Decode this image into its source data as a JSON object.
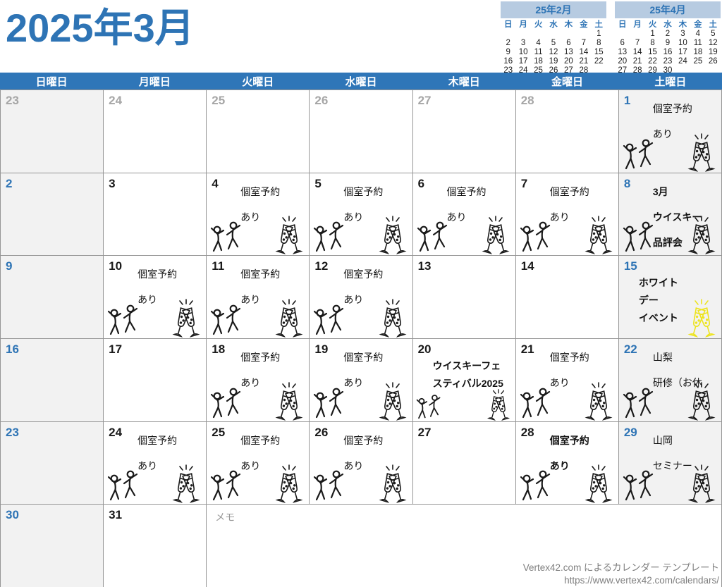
{
  "page_title": "2025年3月",
  "colors": {
    "accent_blue": "#2E74B5",
    "header_bar": "#2F76B8",
    "weekend_bg": "#F2F2F2",
    "prev_month_text": "#A6A6A6",
    "yellow_art": "#EDE41E"
  },
  "mini_calendars": [
    {
      "title": "25年2月",
      "weekdays": [
        "日",
        "月",
        "火",
        "水",
        "木",
        "金",
        "土"
      ],
      "weeks": [
        [
          "",
          "",
          "",
          "",
          "",
          "",
          "1"
        ],
        [
          "2",
          "3",
          "4",
          "5",
          "6",
          "7",
          "8"
        ],
        [
          "9",
          "10",
          "11",
          "12",
          "13",
          "14",
          "15"
        ],
        [
          "16",
          "17",
          "18",
          "19",
          "20",
          "21",
          "22"
        ],
        [
          "23",
          "24",
          "25",
          "26",
          "27",
          "28",
          ""
        ]
      ]
    },
    {
      "title": "25年4月",
      "weekdays": [
        "日",
        "月",
        "火",
        "水",
        "木",
        "金",
        "土"
      ],
      "weeks": [
        [
          "",
          "",
          "1",
          "2",
          "3",
          "4",
          "5"
        ],
        [
          "6",
          "7",
          "8",
          "9",
          "10",
          "11",
          "12"
        ],
        [
          "13",
          "14",
          "15",
          "16",
          "17",
          "18",
          "19"
        ],
        [
          "20",
          "21",
          "22",
          "23",
          "24",
          "25",
          "26"
        ],
        [
          "27",
          "28",
          "29",
          "30",
          "",
          "",
          ""
        ]
      ]
    }
  ],
  "calendar": {
    "weekday_headers": [
      "日曜日",
      "月曜日",
      "火曜日",
      "水曜日",
      "木曜日",
      "金曜日",
      "土曜日"
    ],
    "memo_label": "メモ",
    "weeks": [
      [
        {
          "date": "23",
          "prev": true
        },
        {
          "date": "24",
          "prev": true
        },
        {
          "date": "25",
          "prev": true
        },
        {
          "date": "26",
          "prev": true
        },
        {
          "date": "27",
          "prev": true
        },
        {
          "date": "28",
          "prev": true
        },
        {
          "date": "1",
          "lines": [
            "個室予約",
            "あり"
          ],
          "dancers": true,
          "toast": "dark"
        }
      ],
      [
        {
          "date": "2"
        },
        {
          "date": "3"
        },
        {
          "date": "4",
          "lines": [
            "個室予約",
            "あり"
          ],
          "dancers": true,
          "toast": "dark"
        },
        {
          "date": "5",
          "lines": [
            "個室予約",
            "あり"
          ],
          "dancers": true,
          "toast": "dark"
        },
        {
          "date": "6",
          "lines": [
            "個室予約",
            "あり"
          ],
          "dancers": true,
          "toast": "dark"
        },
        {
          "date": "7",
          "lines": [
            "個室予約",
            "あり"
          ],
          "dancers": true,
          "toast": "dark"
        },
        {
          "date": "8",
          "lines": [
            "3月",
            "ウイスキー",
            "品評会"
          ],
          "bold": true,
          "dancers": true,
          "toast": "dark"
        }
      ],
      [
        {
          "date": "9"
        },
        {
          "date": "10",
          "lines": [
            "個室予約",
            "あり"
          ],
          "dancers": true,
          "toast": "dark"
        },
        {
          "date": "11",
          "lines": [
            "個室予約",
            "あり"
          ],
          "dancers": true,
          "toast": "dark"
        },
        {
          "date": "12",
          "lines": [
            "個室予約",
            "あり"
          ],
          "dancers": true,
          "toast": "dark"
        },
        {
          "date": "13"
        },
        {
          "date": "14"
        },
        {
          "date": "15",
          "lines": [
            "ホワイト",
            "デー",
            "イベント"
          ],
          "bold": true,
          "tight": true,
          "toast": "yellow"
        }
      ],
      [
        {
          "date": "16"
        },
        {
          "date": "17"
        },
        {
          "date": "18",
          "lines": [
            "個室予約",
            "あり"
          ],
          "dancers": true,
          "toast": "dark"
        },
        {
          "date": "19",
          "lines": [
            "個室予約",
            "あり"
          ],
          "dancers": true,
          "toast": "dark"
        },
        {
          "date": "20",
          "lines": [
            "ウイスキーフェ",
            "スティバル2025"
          ],
          "bold": true,
          "tight": true,
          "dancers": true,
          "toast": "dark",
          "small": true
        },
        {
          "date": "21",
          "lines": [
            "個室予約",
            "あり"
          ],
          "dancers": true,
          "toast": "dark"
        },
        {
          "date": "22",
          "lines": [
            "山梨",
            "研修（お休"
          ],
          "dancers": true,
          "toast": "dark"
        }
      ],
      [
        {
          "date": "23"
        },
        {
          "date": "24",
          "lines": [
            "個室予約",
            "あり"
          ],
          "dancers": true,
          "toast": "dark"
        },
        {
          "date": "25",
          "lines": [
            "個室予約",
            "あり"
          ],
          "dancers": true,
          "toast": "dark"
        },
        {
          "date": "26",
          "lines": [
            "個室予約",
            "あり"
          ],
          "dancers": true,
          "toast": "dark"
        },
        {
          "date": "27"
        },
        {
          "date": "28",
          "lines": [
            "個室予約",
            "あり"
          ],
          "bold": true,
          "dancers": true,
          "toast": "dark"
        },
        {
          "date": "29",
          "lines": [
            "山岡",
            "セミナー"
          ],
          "dancers": true,
          "toast": "dark"
        }
      ],
      [
        {
          "date": "30"
        },
        {
          "date": "31"
        },
        {
          "memo": true
        }
      ]
    ]
  },
  "footer": {
    "credit": "Vertex42.com によるカレンダー テンプレート",
    "url": "https://www.vertex42.com/calendars/"
  }
}
